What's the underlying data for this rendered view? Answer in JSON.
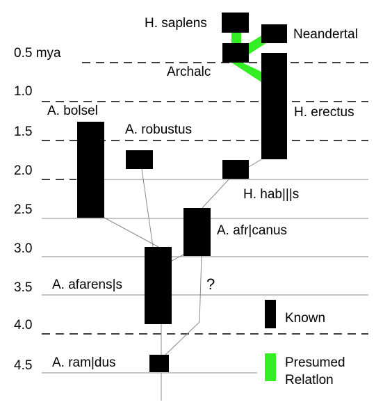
{
  "axis": [
    "0.5 mya",
    "1.0",
    "1.5",
    "2.0",
    "2.5",
    "3.0",
    "3.5",
    "4.0",
    "4.5"
  ],
  "taxa": [
    {
      "label": "H. saplens"
    },
    {
      "label": "Neandertal"
    },
    {
      "label": "Archalc"
    },
    {
      "label": "H. erectus"
    },
    {
      "label": "A. bolsel"
    },
    {
      "label": "A. robustus"
    },
    {
      "label": "H. hab|||s"
    },
    {
      "label": "A. afr|canus"
    },
    {
      "label": "A. afarens|s"
    },
    {
      "label": "A. ram|dus"
    }
  ],
  "question": "?",
  "legend": {
    "known": "Known",
    "presumed": [
      "Presumed",
      "Relatlon"
    ]
  }
}
